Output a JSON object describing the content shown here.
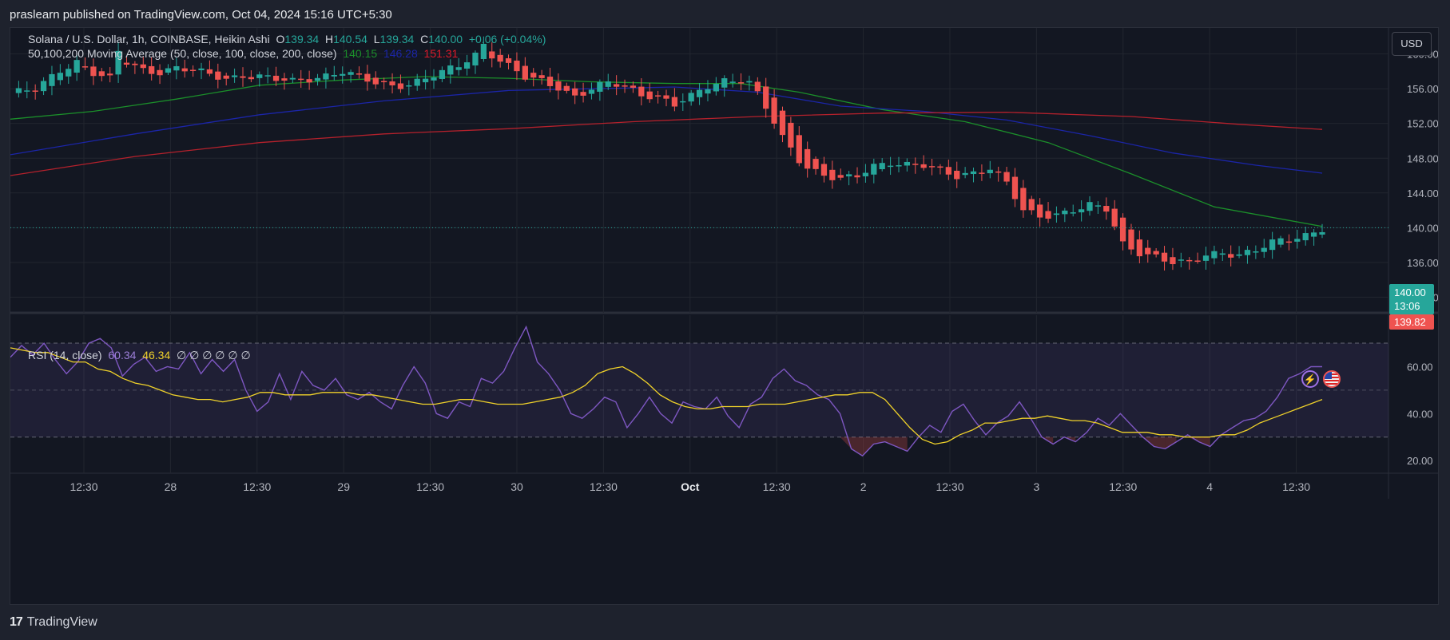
{
  "publisher_text": "praslearn published on TradingView.com, Oct 04, 2024 15:16 UTC+5:30",
  "legend": {
    "symbol": "Solana / U.S. Dollar, 1h, COINBASE, Heikin Ashi",
    "o_label": "O",
    "o_value": "139.34",
    "h_label": "H",
    "h_value": "140.54",
    "l_label": "L",
    "l_value": "139.34",
    "c_label": "C",
    "c_value": "140.00",
    "change": "+0.06 (+0.04%)",
    "ma_label": "50,100,200 Moving Average (50, close, 100, close, 200, close)",
    "ma50_value": "140.15",
    "ma100_value": "146.28",
    "ma200_value": "151.31",
    "rsi_label": "RSI (14, close)",
    "rsi_value": "60.34",
    "rsi_ma_value": "46.34",
    "rsi_empty": "∅ ∅ ∅ ∅ ∅ ∅"
  },
  "currency_button": "USD",
  "price_tags": {
    "last_price": "140.00",
    "countdown": "13:06",
    "other_price": "139.82"
  },
  "footer_brand": "TradingView",
  "colors": {
    "bg": "#131722",
    "grid": "#22262f",
    "up": "#26a69a",
    "down": "#ef5350",
    "ma50": "#1b8f2a",
    "ma100": "#1b25a8",
    "ma200": "#b5212c",
    "rsi": "#7e57c2",
    "rsi_ma": "#f0d22a"
  },
  "icons": [
    "lightning-icon",
    "us-flag-icon"
  ],
  "chart_data": [
    {
      "type": "candlestick",
      "title": "Solana / U.S. Dollar, 1h, COINBASE, Heikin Ashi",
      "y_ticks": [
        "160.00",
        "156.00",
        "152.00",
        "148.00",
        "144.00",
        "140.00",
        "136.00",
        "132.00"
      ],
      "ylim": [
        130.2,
        163.0
      ],
      "x_ticks": [
        "12:30",
        "28",
        "12:30",
        "29",
        "12:30",
        "30",
        "12:30",
        "Oct",
        "12:30",
        "2",
        "12:30",
        "3",
        "12:30",
        "4",
        "12:30"
      ],
      "close_path": [
        [
          0,
          155.5
        ],
        [
          3,
          155.8
        ],
        [
          6,
          158.2
        ],
        [
          8,
          159.2
        ],
        [
          10,
          157.8
        ],
        [
          12,
          157.0
        ],
        [
          13,
          160.2
        ],
        [
          14,
          159.0
        ],
        [
          16,
          158.2
        ],
        [
          18,
          158.0
        ],
        [
          20,
          158.4
        ],
        [
          22,
          158.0
        ],
        [
          24,
          157.6
        ],
        [
          26,
          157.2
        ],
        [
          28,
          157.6
        ],
        [
          30,
          157.4
        ],
        [
          32,
          157.0
        ],
        [
          34,
          156.8
        ],
        [
          36,
          157.2
        ],
        [
          38,
          157.6
        ],
        [
          40,
          158.0
        ],
        [
          42,
          157.2
        ],
        [
          44,
          156.6
        ],
        [
          46,
          156.4
        ],
        [
          48,
          156.6
        ],
        [
          50,
          157.2
        ],
        [
          52,
          157.8
        ],
        [
          54,
          158.6
        ],
        [
          56,
          160.0
        ],
        [
          57,
          161.2
        ],
        [
          58,
          160.0
        ],
        [
          60,
          158.6
        ],
        [
          62,
          157.2
        ],
        [
          64,
          156.8
        ],
        [
          66,
          156.2
        ],
        [
          68,
          155.2
        ],
        [
          70,
          156.0
        ],
        [
          72,
          156.6
        ],
        [
          74,
          156.2
        ],
        [
          76,
          155.4
        ],
        [
          78,
          155.2
        ],
        [
          80,
          154.2
        ],
        [
          82,
          155.0
        ],
        [
          84,
          156.2
        ],
        [
          86,
          157.0
        ],
        [
          88,
          157.2
        ],
        [
          89,
          156.8
        ],
        [
          90,
          155.4
        ],
        [
          91,
          153.8
        ],
        [
          92,
          152.0
        ],
        [
          93,
          150.2
        ],
        [
          94,
          149.0
        ],
        [
          95,
          147.8
        ],
        [
          96,
          147.0
        ],
        [
          98,
          146.2
        ],
        [
          100,
          145.6
        ],
        [
          102,
          145.8
        ],
        [
          104,
          147.0
        ],
        [
          106,
          147.6
        ],
        [
          108,
          147.4
        ],
        [
          110,
          147.2
        ],
        [
          112,
          146.4
        ],
        [
          114,
          145.8
        ],
        [
          116,
          146.4
        ],
        [
          118,
          147.0
        ],
        [
          120,
          145.2
        ],
        [
          121,
          143.5
        ],
        [
          122,
          141.8
        ],
        [
          124,
          141.2
        ],
        [
          126,
          141.6
        ],
        [
          128,
          142.2
        ],
        [
          130,
          142.6
        ],
        [
          132,
          142.0
        ],
        [
          133,
          140.0
        ],
        [
          134,
          138.0
        ],
        [
          136,
          137.2
        ],
        [
          138,
          136.8
        ],
        [
          140,
          136.0
        ],
        [
          142,
          135.8
        ],
        [
          144,
          136.8
        ],
        [
          146,
          137.2
        ],
        [
          148,
          137.0
        ],
        [
          150,
          137.4
        ],
        [
          152,
          138.2
        ],
        [
          154,
          138.6
        ],
        [
          156,
          139.2
        ],
        [
          158,
          140.0
        ]
      ],
      "series": [
        {
          "name": "MA 50",
          "value": 140.15,
          "path": [
            [
              0,
              152.5
            ],
            [
              10,
              153.4
            ],
            [
              20,
              154.8
            ],
            [
              30,
              156.4
            ],
            [
              40,
              157.0
            ],
            [
              50,
              157.4
            ],
            [
              60,
              157.2
            ],
            [
              70,
              156.8
            ],
            [
              80,
              156.6
            ],
            [
              88,
              156.6
            ],
            [
              95,
              155.6
            ],
            [
              105,
              153.6
            ],
            [
              115,
              152.2
            ],
            [
              125,
              149.8
            ],
            [
              135,
              146.2
            ],
            [
              145,
              142.4
            ],
            [
              158,
              140.15
            ]
          ]
        },
        {
          "name": "MA 100",
          "value": 146.28,
          "path": [
            [
              0,
              148.4
            ],
            [
              15,
              150.8
            ],
            [
              30,
              153.0
            ],
            [
              45,
              154.6
            ],
            [
              60,
              155.8
            ],
            [
              70,
              156.0
            ],
            [
              80,
              156.2
            ],
            [
              90,
              155.6
            ],
            [
              100,
              154.0
            ],
            [
              110,
              153.4
            ],
            [
              120,
              152.4
            ],
            [
              130,
              150.6
            ],
            [
              140,
              148.6
            ],
            [
              150,
              147.2
            ],
            [
              158,
              146.28
            ]
          ]
        },
        {
          "name": "MA 200",
          "value": 151.31,
          "path": [
            [
              0,
              146.0
            ],
            [
              15,
              148.2
            ],
            [
              30,
              149.8
            ],
            [
              45,
              150.8
            ],
            [
              60,
              151.4
            ],
            [
              75,
              152.2
            ],
            [
              90,
              152.8
            ],
            [
              105,
              153.2
            ],
            [
              120,
              153.3
            ],
            [
              135,
              152.8
            ],
            [
              148,
              151.9
            ],
            [
              158,
              151.31
            ]
          ]
        }
      ]
    },
    {
      "type": "line",
      "title": "RSI (14, close)",
      "y_ticks": [
        "80.00",
        "60.00",
        "40.00",
        "20.00"
      ],
      "ylim": [
        14.6,
        82.6
      ],
      "bands": [
        30,
        50,
        70
      ],
      "series": [
        {
          "name": "RSI",
          "value": 60.34,
          "values": [
            64,
            69,
            65,
            70,
            63,
            57,
            62,
            70,
            72,
            68,
            56,
            61,
            64,
            58,
            60,
            59,
            66,
            57,
            63,
            58,
            63,
            50,
            41,
            45,
            57,
            46,
            58,
            52,
            50,
            55,
            48,
            46,
            49,
            45,
            42,
            52,
            60,
            53,
            40,
            38,
            45,
            43,
            55,
            53,
            58,
            68,
            77,
            62,
            57,
            50,
            40,
            38,
            42,
            47,
            45,
            34,
            40,
            47,
            40,
            36,
            45,
            43,
            42,
            47,
            39,
            34,
            44,
            47,
            55,
            59,
            54,
            52,
            48,
            46,
            40,
            25,
            22,
            27,
            28,
            26,
            24,
            30,
            35,
            32,
            41,
            44,
            37,
            31,
            36,
            39,
            45,
            38,
            30,
            27,
            30,
            28,
            32,
            38,
            35,
            40,
            35,
            30,
            26,
            25,
            28,
            31,
            28,
            26,
            31,
            34,
            37,
            38,
            41,
            47,
            55,
            57,
            60,
            60
          ]
        },
        {
          "name": "RSI-based MA",
          "value": 46.34,
          "values": [
            68,
            67,
            66,
            66,
            64,
            62,
            62,
            59,
            58,
            55,
            53,
            52,
            50,
            48,
            47,
            46,
            46,
            45,
            46,
            47,
            49,
            49,
            48,
            48,
            48,
            49,
            49,
            49,
            48,
            48,
            47,
            46,
            45,
            44,
            44,
            45,
            46,
            46,
            45,
            44,
            44,
            44,
            45,
            46,
            47,
            49,
            52,
            57,
            59,
            60,
            57,
            53,
            48,
            45,
            43,
            42,
            42,
            43,
            43,
            43,
            44,
            44,
            44,
            45,
            46,
            47,
            48,
            48,
            49,
            49,
            46,
            40,
            34,
            29,
            27,
            28,
            31,
            33,
            36,
            36,
            37,
            38,
            38,
            39,
            38,
            37,
            37,
            36,
            34,
            32,
            32,
            32,
            31,
            31,
            30,
            30,
            30,
            31,
            31,
            33,
            36,
            38,
            40,
            42,
            44,
            46
          ]
        }
      ]
    }
  ]
}
